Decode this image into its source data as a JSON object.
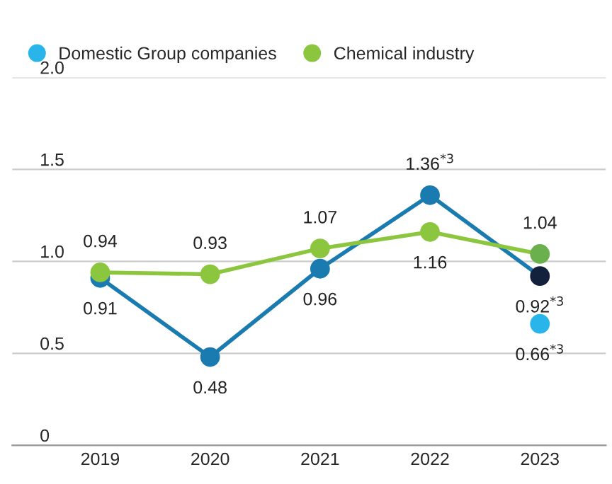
{
  "chart_data": {
    "type": "line",
    "categories": [
      "2019",
      "2020",
      "2021",
      "2022",
      "2023"
    ],
    "series": [
      {
        "color": "#1a7bb0",
        "colors": [
          "#1a7bb0",
          "#1a7bb0",
          "#1a7bb0",
          "#1a7bb0",
          "#14213d"
        ],
        "values": [
          0.91,
          0.48,
          0.96,
          1.36,
          0.92
        ],
        "value_labels": [
          "0.91",
          "0.48",
          "0.96",
          "1.36$^{*3}$",
          "0.92$^{*3}$"
        ]
      },
      {
        "name": "Domestic Group companies",
        "type": "scatter",
        "color": "#29b5ea",
        "values": [
          null,
          null,
          null,
          null,
          0.66
        ],
        "value_labels": [
          null,
          null,
          null,
          null,
          "0.66$^{*3}$"
        ]
      },
      {
        "name": "Chemical industry",
        "color": "#8cc63f",
        "colors": [
          "#8cc63f",
          "#8cc63f",
          "#8cc63f",
          "#8cc63f",
          "#6ab04c"
        ],
        "values": [
          0.94,
          0.93,
          1.07,
          1.16,
          1.04
        ],
        "value_labels": [
          "0.94",
          "0.93",
          "1.07",
          "1.16",
          "1.04"
        ]
      }
    ],
    "ylim": [
      0,
      2.0
    ],
    "yticks": [
      {
        "value": 0,
        "label": "0"
      },
      {
        "value": 0.5,
        "label": "0.5"
      },
      {
        "value": 1.0,
        "label": "1.0"
      },
      {
        "value": 1.5,
        "label": "1.5"
      },
      {
        "value": 2.0,
        "label": "2.0"
      }
    ],
    "grid": "y",
    "marker": "circle",
    "legend": "top left"
  }
}
